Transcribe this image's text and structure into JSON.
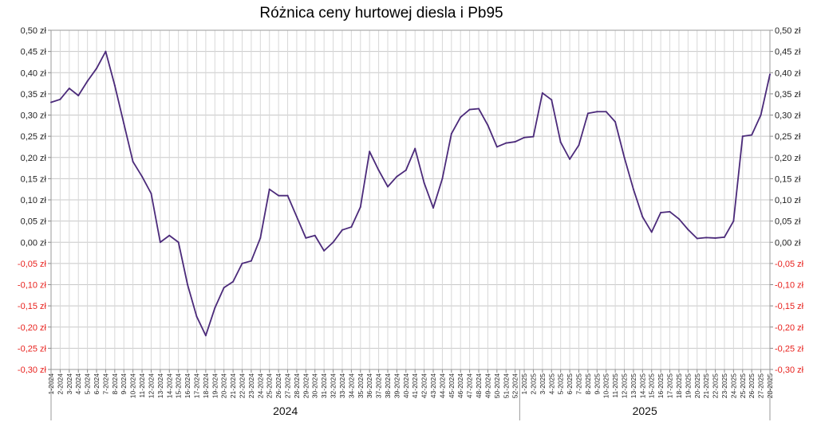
{
  "chart_data": {
    "type": "line",
    "title": "Różnica ceny hurtowej diesla i Pb95",
    "xlabel": "",
    "ylabel": "",
    "ylim": [
      -0.3,
      0.5
    ],
    "y_ticks": [
      "0,50 zł",
      "0,45 zł",
      "0,40 zł",
      "0,35 zł",
      "0,30 zł",
      "0,25 zł",
      "0,20 zł",
      "0,15 zł",
      "0,10 zł",
      "0,05 zł",
      "0,00 zł",
      "-0,05 zł",
      "-0,10 zł",
      "-0,15 zł",
      "-0,20 zł",
      "-0,25 zł",
      "-0,30 zł"
    ],
    "y_tick_values": [
      0.5,
      0.45,
      0.4,
      0.35,
      0.3,
      0.25,
      0.2,
      0.15,
      0.1,
      0.05,
      0.0,
      -0.05,
      -0.1,
      -0.15,
      -0.2,
      -0.25,
      -0.3
    ],
    "negative_tick_color": "#e8211d",
    "positive_tick_color": "#222222",
    "line_color": "#4b2a7a",
    "grid": true,
    "legend": "none",
    "year_groups": [
      {
        "label": "2024",
        "from": 0,
        "to": 51
      },
      {
        "label": "2025",
        "from": 52,
        "to": 79
      }
    ],
    "categories": [
      "1-2024",
      "2-2024",
      "3-2024",
      "4-2024",
      "5-2024",
      "6-2024",
      "7-2024",
      "8-2024",
      "9-2024",
      "10-2024",
      "11-2024",
      "12-2024",
      "13-2024",
      "14-2024",
      "15-2024",
      "16-2024",
      "17-2024",
      "18-2024",
      "19-2024",
      "20-2024",
      "21-2024",
      "22-2024",
      "23-2024",
      "24-2024",
      "25-2024",
      "26-2024",
      "27-2024",
      "28-2024",
      "29-2024",
      "30-2024",
      "31-2024",
      "32-2024",
      "33-2024",
      "34-2024",
      "35-2024",
      "36-2024",
      "37-2024",
      "38-2024",
      "39-2024",
      "40-2024",
      "41-2024",
      "42-2024",
      "43-2024",
      "44-2024",
      "45-2024",
      "46-2024",
      "47-2024",
      "48-2024",
      "49-2024",
      "50-2024",
      "51-2024",
      "52-2024",
      "1-2025",
      "2-2025",
      "3-2025",
      "4-2025",
      "5-2025",
      "6-2025",
      "7-2025",
      "8-2025",
      "9-2025",
      "10-2025",
      "11-2025",
      "12-2025",
      "13-2025",
      "14-2025",
      "15-2025",
      "16-2025",
      "17-2025",
      "18-2025",
      "19-2025",
      "20-2025",
      "21-2025",
      "22-2025",
      "23-2025",
      "24-2025",
      "25-2025",
      "26-2025",
      "27-2025",
      "28-2025"
    ],
    "series": [
      {
        "values": [
          0.33,
          0.337,
          0.363,
          0.346,
          0.38,
          0.41,
          0.45,
          0.37,
          0.28,
          0.19,
          0.155,
          0.115,
          0.0,
          0.016,
          0.0,
          -0.1,
          -0.175,
          -0.22,
          -0.155,
          -0.107,
          -0.093,
          -0.05,
          -0.044,
          0.01,
          0.125,
          0.11,
          0.11,
          0.06,
          0.01,
          0.016,
          -0.02,
          0.0,
          0.029,
          0.036,
          0.083,
          0.214,
          0.17,
          0.131,
          0.155,
          0.17,
          0.221,
          0.14,
          0.081,
          0.15,
          0.256,
          0.295,
          0.313,
          0.315,
          0.276,
          0.225,
          0.234,
          0.237,
          0.247,
          0.249,
          0.352,
          0.336,
          0.236,
          0.196,
          0.229,
          0.304,
          0.308,
          0.308,
          0.284,
          0.2,
          0.125,
          0.06,
          0.024,
          0.07,
          0.072,
          0.055,
          0.03,
          0.009,
          0.011,
          0.01,
          0.012,
          0.05,
          0.25,
          0.253,
          0.3,
          0.396
        ]
      }
    ]
  }
}
